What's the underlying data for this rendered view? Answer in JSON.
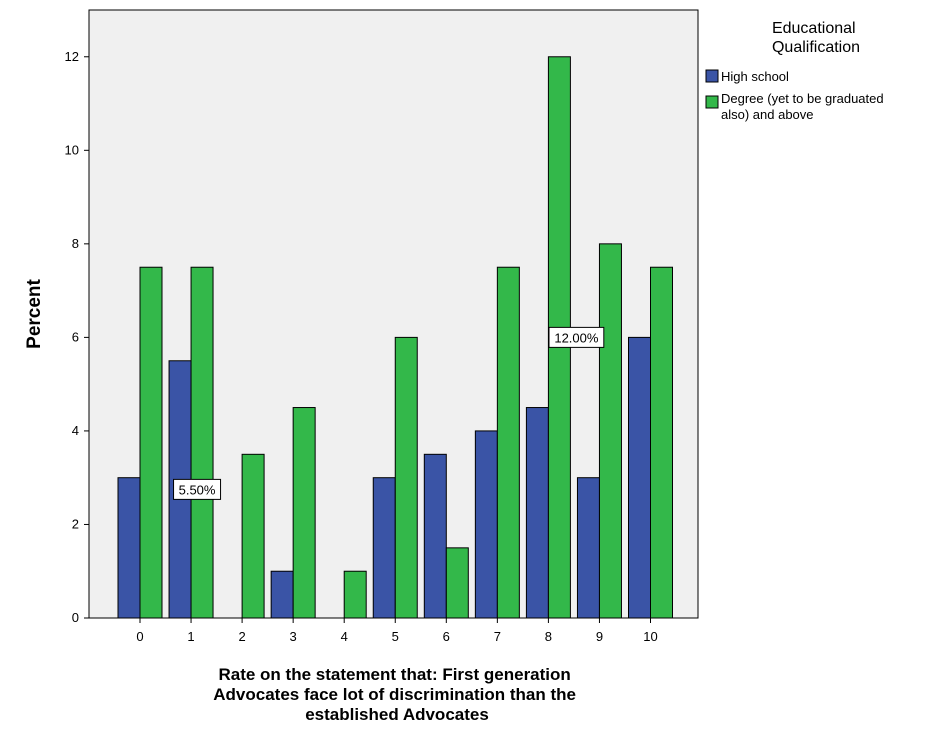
{
  "chart_data": {
    "type": "bar",
    "categories": [
      "0",
      "1",
      "2",
      "3",
      "4",
      "5",
      "6",
      "7",
      "8",
      "9",
      "10"
    ],
    "series": [
      {
        "name": "High school",
        "color": "#3a54a6",
        "values": [
          3,
          5.5,
          0,
          1,
          0,
          3,
          3.5,
          4,
          4.5,
          3,
          6
        ]
      },
      {
        "name": "Degree (yet to be graduated also) and above",
        "color": "#33b84a",
        "values": [
          7.5,
          7.5,
          3.5,
          4.5,
          1,
          6,
          1.5,
          7.5,
          12,
          8,
          7.5
        ]
      }
    ],
    "ylabel": "Percent",
    "xlabel": "Rate on the statement that: First generation Advocates face lot of discrimination than the established Advocates",
    "xlabel_lines": [
      "Rate on the statement that: First generation",
      "Advocates face lot of discrimination than the",
      "established Advocates"
    ],
    "ylim": [
      0,
      13
    ],
    "yticks": [
      "0",
      "2",
      "4",
      "6",
      "8",
      "10",
      "12"
    ],
    "legend": {
      "title_lines": [
        "Educational",
        "Qualification"
      ],
      "items": [
        {
          "lines": [
            "High school"
          ]
        },
        {
          "lines": [
            "Degree (yet to be graduated",
            "also) and above"
          ]
        }
      ],
      "placement": "top-right, outside plot"
    },
    "annotations": [
      {
        "text": "5.50%",
        "category": "1",
        "series": "High school"
      },
      {
        "text": "12.00%",
        "category": "8",
        "series": "Degree (yet to be graduated also) and above"
      }
    ],
    "plot_background": "#f0f0f0",
    "grid": false
  }
}
